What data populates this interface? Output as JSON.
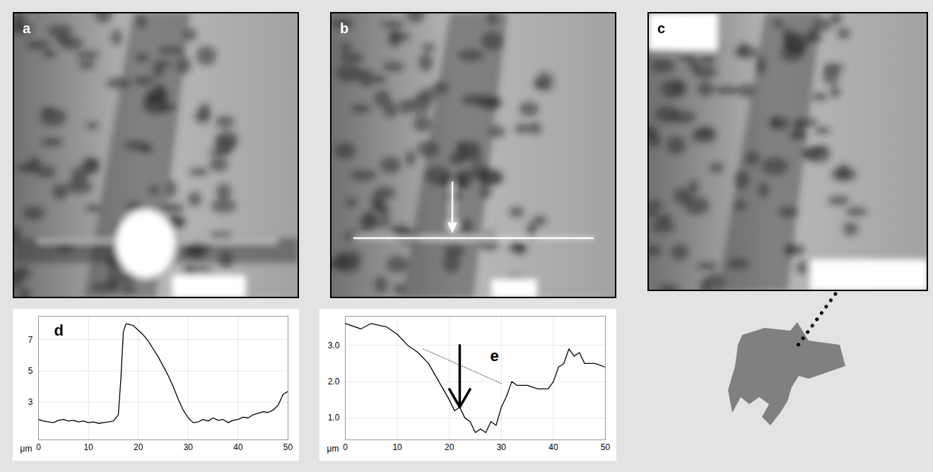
{
  "panels": [
    {
      "label": "a"
    },
    {
      "label": "b"
    },
    {
      "label": "c"
    }
  ],
  "chart_data": [
    {
      "type": "line",
      "title": "d",
      "xlabel": "μm",
      "color": "#000000",
      "grid": true,
      "x": [
        0,
        1,
        2,
        3,
        4,
        5,
        6,
        7,
        8,
        9,
        10,
        11,
        12,
        13,
        14,
        15,
        16,
        16.5,
        17,
        17.5,
        18,
        19,
        20,
        21,
        22,
        23,
        24,
        25,
        26,
        27,
        28,
        29,
        30,
        31,
        32,
        33,
        34,
        35,
        36,
        37,
        38,
        39,
        40,
        41,
        42,
        43,
        44,
        45,
        46,
        47,
        48,
        49,
        50
      ],
      "values": [
        1.9,
        1.8,
        1.75,
        1.7,
        1.85,
        1.9,
        1.8,
        1.85,
        1.75,
        1.8,
        1.7,
        1.75,
        1.65,
        1.7,
        1.75,
        1.8,
        2.2,
        4.5,
        7.5,
        8.0,
        8.0,
        7.9,
        7.6,
        7.3,
        6.9,
        6.4,
        5.9,
        5.3,
        4.7,
        4.0,
        3.2,
        2.5,
        2.0,
        1.7,
        1.75,
        1.9,
        1.8,
        2.0,
        1.85,
        1.9,
        1.7,
        1.85,
        1.9,
        2.05,
        2.0,
        2.2,
        2.3,
        2.4,
        2.35,
        2.5,
        2.8,
        3.5,
        3.7
      ],
      "xlim": [
        0,
        50
      ],
      "xticks": [
        0,
        10,
        20,
        30,
        40,
        50
      ],
      "ylim": [
        0.6,
        8.5
      ],
      "yticks": [
        3,
        5,
        7
      ]
    },
    {
      "type": "line",
      "title": "e",
      "xlabel": "μm",
      "color": "#000000",
      "grid": true,
      "x": [
        0,
        3,
        5,
        8,
        10,
        12,
        14,
        16,
        18,
        20,
        21,
        22,
        23,
        24,
        25,
        26,
        27,
        28,
        29,
        30,
        31,
        32,
        33,
        35,
        37,
        39,
        40,
        41,
        42,
        43,
        44,
        45,
        46,
        48,
        50
      ],
      "values": [
        3.6,
        3.45,
        3.6,
        3.5,
        3.3,
        3.0,
        2.8,
        2.5,
        2.0,
        1.5,
        1.2,
        1.3,
        1.0,
        0.9,
        0.6,
        0.7,
        0.6,
        0.9,
        0.8,
        1.3,
        1.6,
        2.0,
        1.9,
        1.9,
        1.8,
        1.8,
        2.0,
        2.4,
        2.5,
        2.9,
        2.7,
        2.8,
        2.5,
        2.5,
        2.4
      ],
      "reference_line": {
        "x": [
          15,
          30
        ],
        "y": [
          2.9,
          1.95
        ]
      },
      "arrow": {
        "x": 22,
        "y": [
          3.0,
          1.3
        ]
      },
      "xlim": [
        0,
        50
      ],
      "xticks": [
        0,
        10,
        20,
        30,
        40,
        50
      ],
      "ylim": [
        0.4,
        3.8
      ],
      "yticks": [
        1,
        2,
        3
      ]
    }
  ]
}
